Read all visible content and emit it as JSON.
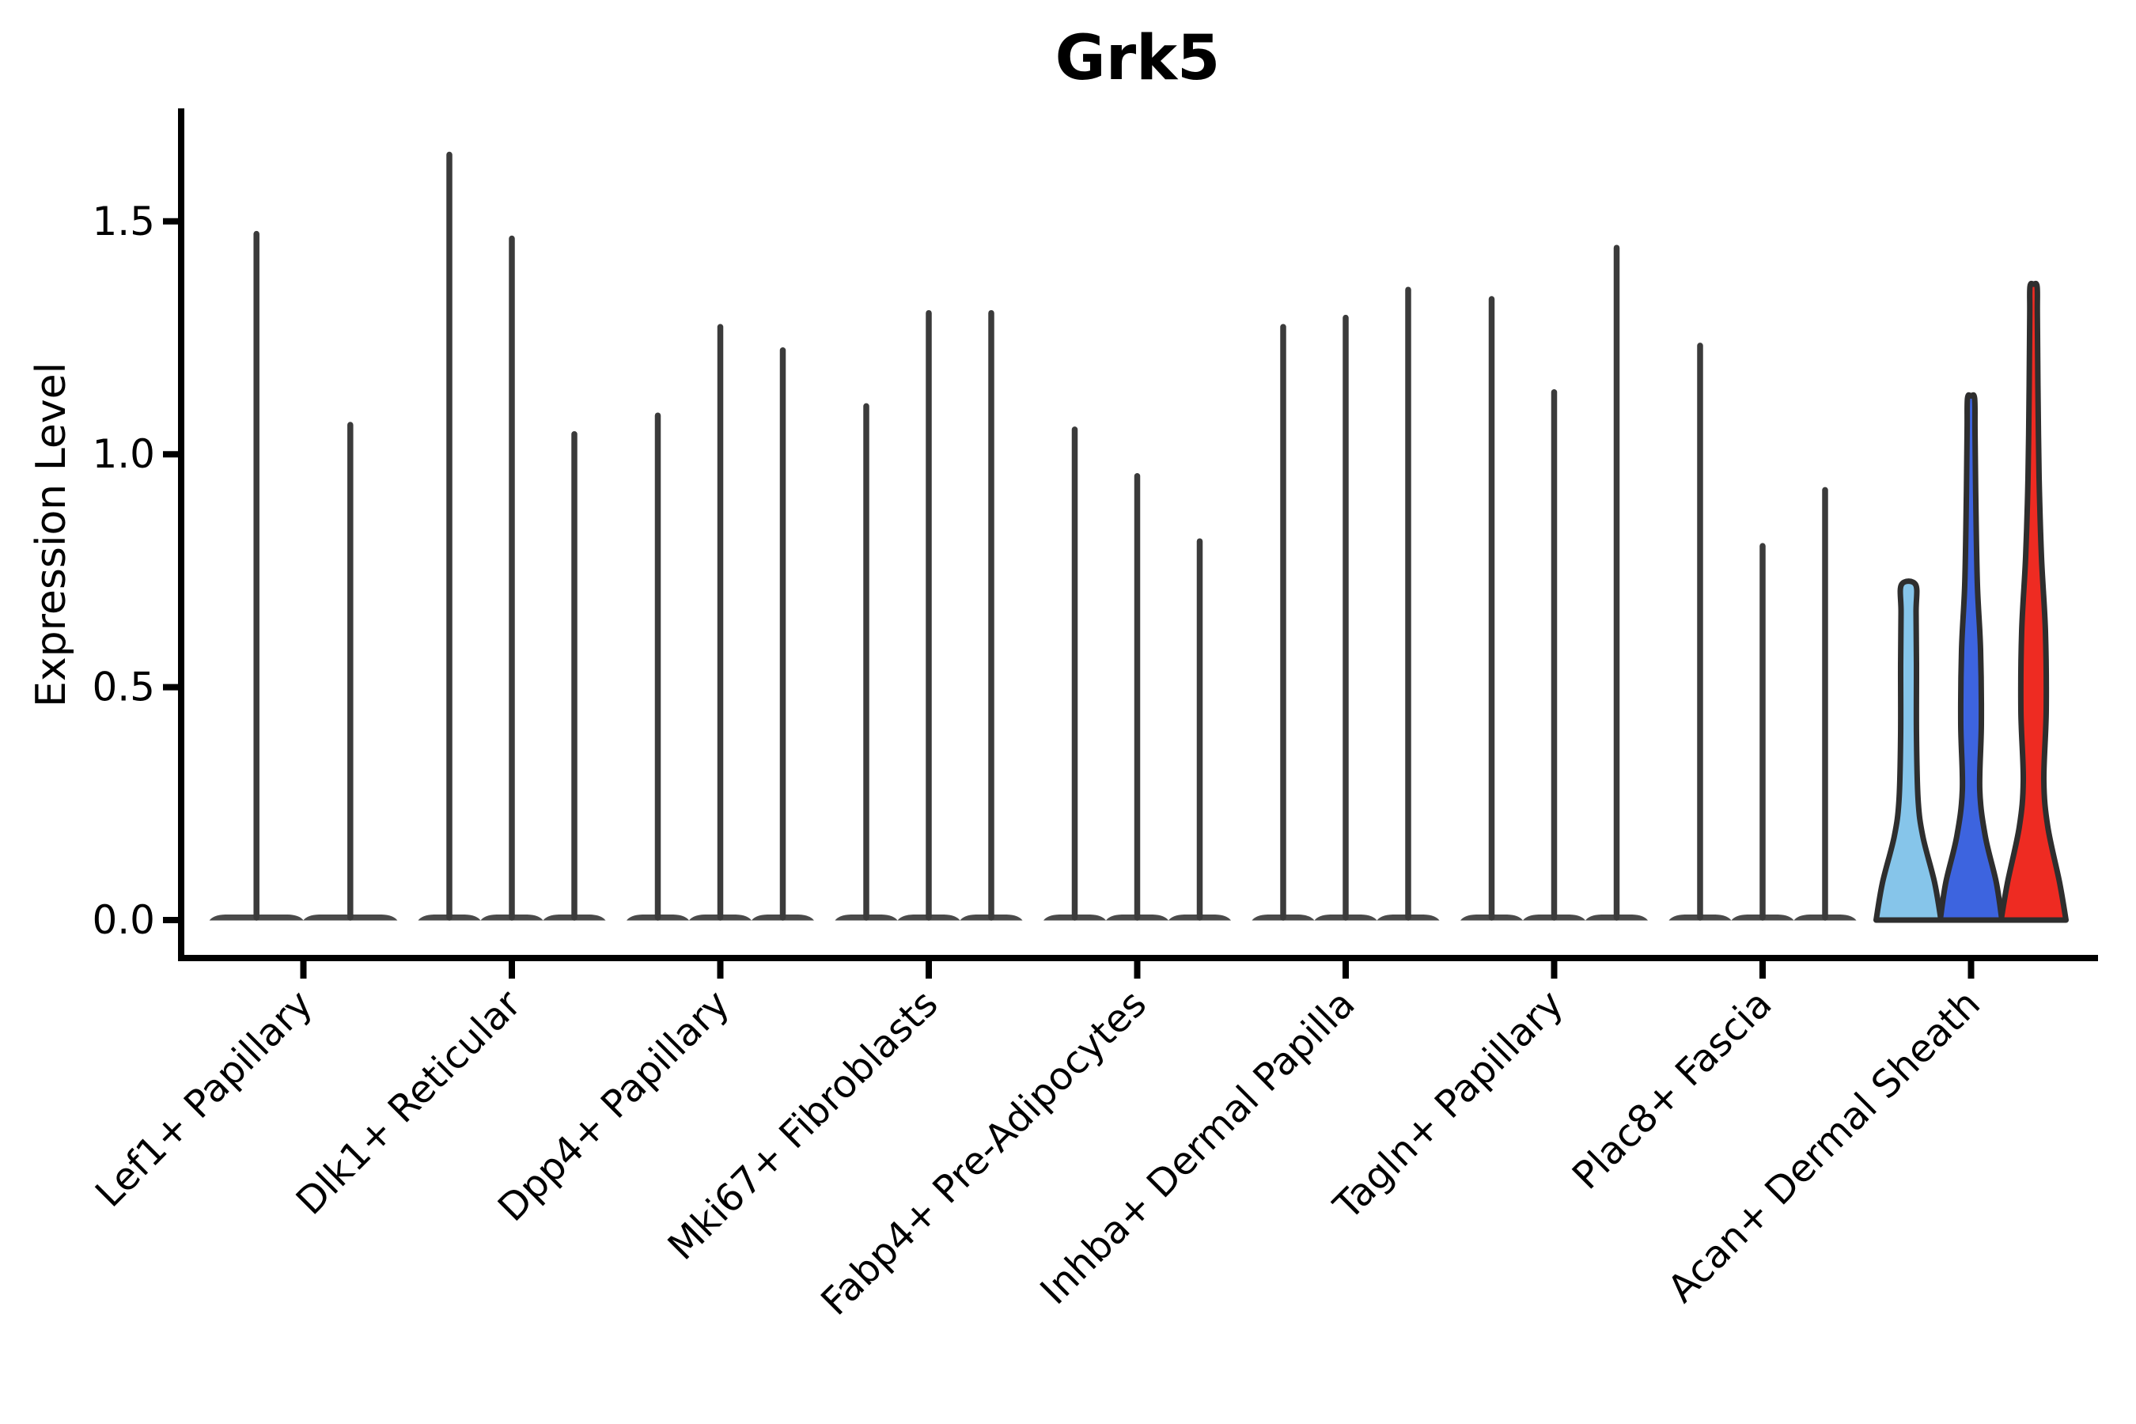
{
  "title": "Grk5",
  "chart_data": {
    "type": "violin",
    "title": "Grk5",
    "xlabel": "",
    "ylabel": "Expression Level",
    "ylim": [
      -0.09,
      1.74
    ],
    "yticks": [
      0.0,
      0.5,
      1.0,
      1.5
    ],
    "ytick_labels": [
      "0.0",
      "0.5",
      "1.0",
      "1.5"
    ],
    "grid": false,
    "legend": "none",
    "categories": [
      "Lef1+ Papillary",
      "Dlk1+ Reticular",
      "Dpp4+ Papillary",
      "Mki67+ Fibroblasts",
      "Fabp4+ Pre-Adipocytes",
      "Inhba+ Dermal Papilla",
      "Tagln+ Papillary",
      "Plac8+ Fascia",
      "Acan+ Dermal Sheath"
    ],
    "groups": [
      {
        "category": "Lef1+ Papillary",
        "violins": [
          {
            "style": "spike",
            "max": 1.48
          },
          {
            "style": "spike",
            "max": 1.07
          }
        ]
      },
      {
        "category": "Dlk1+ Reticular",
        "violins": [
          {
            "style": "spike",
            "max": 1.65
          },
          {
            "style": "spike",
            "max": 1.47
          },
          {
            "style": "spike",
            "max": 1.05
          }
        ]
      },
      {
        "category": "Dpp4+ Papillary",
        "violins": [
          {
            "style": "spike",
            "max": 1.09
          },
          {
            "style": "spike",
            "max": 1.28
          },
          {
            "style": "spike",
            "max": 1.23
          }
        ]
      },
      {
        "category": "Mki67+ Fibroblasts",
        "violins": [
          {
            "style": "spike",
            "max": 1.11
          },
          {
            "style": "spike",
            "max": 1.31
          },
          {
            "style": "spike",
            "max": 1.31
          }
        ]
      },
      {
        "category": "Fabp4+ Pre-Adipocytes",
        "violins": [
          {
            "style": "spike",
            "max": 1.06
          },
          {
            "style": "spike",
            "max": 0.96
          },
          {
            "style": "spike",
            "max": 0.82
          }
        ]
      },
      {
        "category": "Inhba+ Dermal Papilla",
        "violins": [
          {
            "style": "spike",
            "max": 1.28
          },
          {
            "style": "spike",
            "max": 1.3
          },
          {
            "style": "spike",
            "max": 1.36
          }
        ]
      },
      {
        "category": "Tagln+ Papillary",
        "violins": [
          {
            "style": "spike",
            "max": 1.34
          },
          {
            "style": "spike",
            "max": 1.14
          },
          {
            "style": "spike",
            "max": 1.45
          }
        ]
      },
      {
        "category": "Plac8+ Fascia",
        "violins": [
          {
            "style": "spike",
            "max": 1.24
          },
          {
            "style": "spike",
            "max": 0.81
          },
          {
            "style": "spike",
            "max": 0.93
          }
        ]
      },
      {
        "category": "Acan+ Dermal Sheath",
        "violins": [
          {
            "style": "body",
            "cap": "flat",
            "fill": "#86C5EA",
            "max": 0.72,
            "profile": [
              [
                0,
                41
              ],
              [
                0.08,
                33
              ],
              [
                0.18,
                18
              ],
              [
                0.26,
                12
              ],
              [
                0.4,
                10
              ],
              [
                0.55,
                10
              ],
              [
                0.66,
                9.5
              ],
              [
                0.72,
                9
              ]
            ]
          },
          {
            "style": "body",
            "cap": "round",
            "fill": "#3D64DF",
            "max": 1.12,
            "profile": [
              [
                0,
                39
              ],
              [
                0.08,
                32
              ],
              [
                0.18,
                18
              ],
              [
                0.28,
                11
              ],
              [
                0.42,
                13
              ],
              [
                0.58,
                12
              ],
              [
                0.72,
                8
              ],
              [
                0.9,
                6
              ],
              [
                1.05,
                5
              ],
              [
                1.12,
                4.5
              ]
            ]
          },
          {
            "style": "body",
            "cap": "round",
            "fill": "#EE2B22",
            "max": 1.36,
            "profile": [
              [
                0,
                41
              ],
              [
                0.08,
                33
              ],
              [
                0.2,
                18
              ],
              [
                0.3,
                13
              ],
              [
                0.45,
                16
              ],
              [
                0.62,
                15
              ],
              [
                0.78,
                10
              ],
              [
                0.95,
                7
              ],
              [
                1.15,
                5.5
              ],
              [
                1.3,
                4.8
              ],
              [
                1.36,
                4.5
              ]
            ]
          }
        ]
      }
    ],
    "colors": {
      "spike": "#3B3B3B",
      "flat_base": "#4A4A4A",
      "outline": "#2E2E2E",
      "axis": "#000000",
      "light_blue": "#86C5EA",
      "blue": "#3D64DF",
      "red": "#EE2B22",
      "background": "#FFFFFF"
    }
  }
}
